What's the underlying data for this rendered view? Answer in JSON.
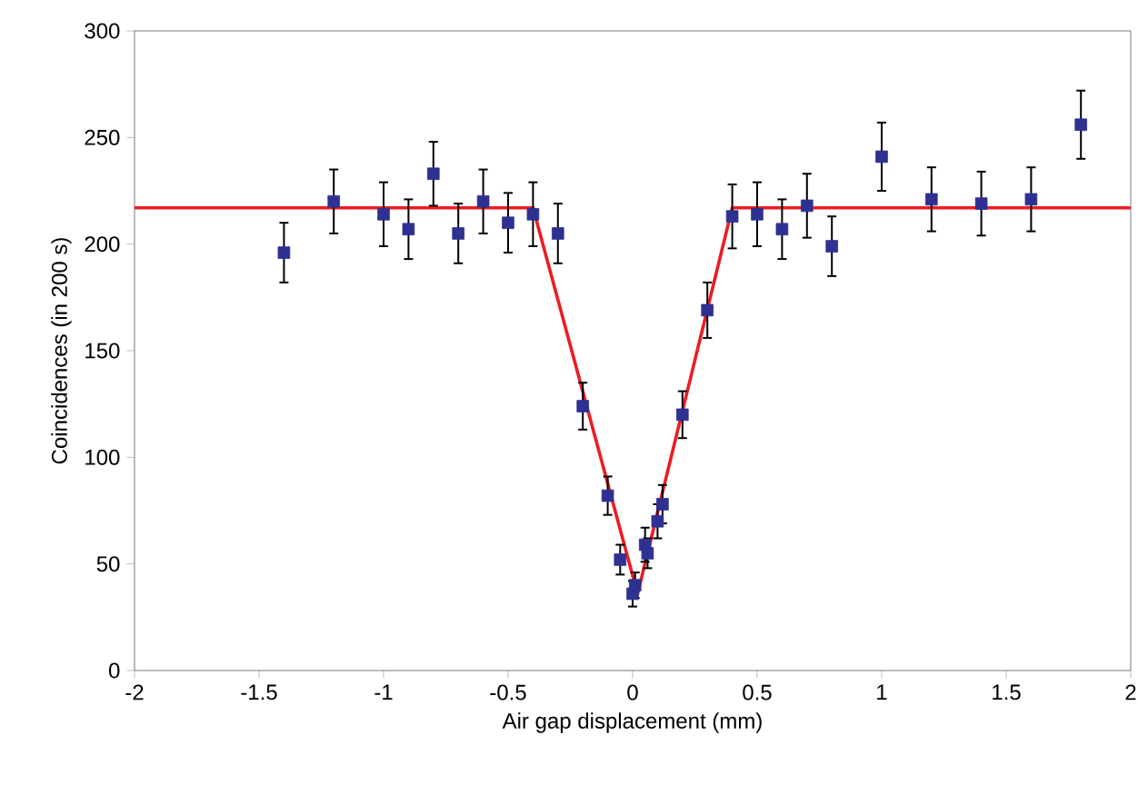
{
  "chart_data": {
    "type": "scatter",
    "xlabel": "Air gap displacement  (mm)",
    "ylabel": "Coincidences  (in 200 s)",
    "xlim": [
      -2,
      2
    ],
    "ylim": [
      0,
      300
    ],
    "xticks": [
      -2,
      -1.5,
      -1,
      -0.5,
      0,
      0.5,
      1,
      1.5,
      2
    ],
    "yticks": [
      0,
      50,
      100,
      150,
      200,
      250,
      300
    ],
    "grid": false,
    "marker": "square",
    "series": [
      {
        "color": "#2e3192",
        "x": [
          -1.4,
          -1.2,
          -1.0,
          -0.9,
          -0.8,
          -0.7,
          -0.6,
          -0.5,
          -0.4,
          -0.3,
          -0.2,
          -0.1,
          -0.05,
          0,
          0.01,
          0.05,
          0.06,
          0.1,
          0.12,
          0.2,
          0.3,
          0.4,
          0.5,
          0.6,
          0.7,
          0.8,
          1.0,
          1.2,
          1.4,
          1.6,
          1.8
        ],
        "values": [
          196,
          220,
          214,
          207,
          233,
          205,
          220,
          210,
          214,
          205,
          124,
          82,
          52,
          36,
          40,
          59,
          55,
          70,
          78,
          120,
          169,
          213,
          214,
          207,
          218,
          199,
          241,
          221,
          219,
          221,
          256
        ],
        "errors": [
          14,
          15,
          15,
          14,
          15,
          14,
          15,
          14,
          15,
          14,
          11,
          9,
          7,
          6,
          6,
          8,
          7,
          8,
          9,
          11,
          13,
          15,
          15,
          14,
          15,
          14,
          16,
          15,
          15,
          15,
          16
        ]
      },
      {
        "type": "line",
        "color": "#ed1c24",
        "marker": "none",
        "line_style": "solid",
        "x": [
          -2,
          -0.4,
          0.02,
          0.4,
          2
        ],
        "values": [
          217,
          217,
          36,
          217,
          217
        ]
      }
    ]
  }
}
